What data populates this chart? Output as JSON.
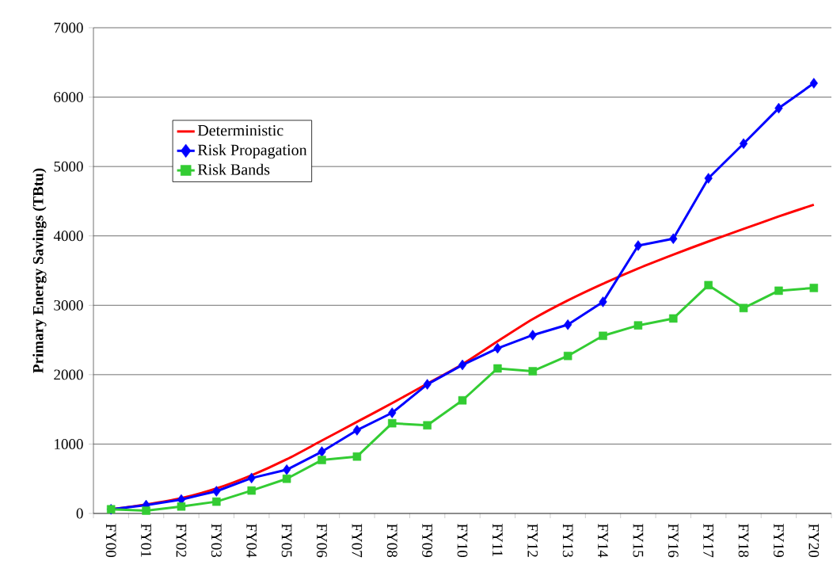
{
  "chart_data": {
    "type": "line",
    "ylabel": "Primary Energy Savings (TBtu)",
    "categories": [
      "FY00",
      "FY01",
      "FY02",
      "FY03",
      "FY04",
      "FY05",
      "FY06",
      "FY07",
      "FY08",
      "FY09",
      "FY10",
      "FY11",
      "FY12",
      "FY13",
      "FY14",
      "FY15",
      "FY16",
      "FY17",
      "FY18",
      "FY19",
      "FY20"
    ],
    "series": [
      {
        "name": "Deterministic",
        "color": "#ff0000",
        "marker": "none",
        "values": [
          60,
          130,
          220,
          360,
          550,
          780,
          1050,
          1320,
          1590,
          1870,
          2150,
          2480,
          2800,
          3070,
          3310,
          3530,
          3730,
          3920,
          4100,
          4280,
          4450
        ]
      },
      {
        "name": "Risk Propagation",
        "color": "#0000ff",
        "marker": "diamond",
        "values": [
          60,
          120,
          200,
          320,
          510,
          630,
          890,
          1200,
          1450,
          1860,
          2140,
          2380,
          2570,
          2720,
          3050,
          3860,
          3960,
          4830,
          5330,
          5840,
          6200
        ]
      },
      {
        "name": "Risk Bands",
        "color": "#33cc33",
        "marker": "square",
        "values": [
          60,
          40,
          100,
          170,
          330,
          500,
          770,
          820,
          1300,
          1270,
          1630,
          2090,
          2050,
          2270,
          2560,
          2710,
          2810,
          3290,
          2960,
          3210,
          3250
        ]
      }
    ],
    "ylim": [
      0,
      7000
    ],
    "yticks": [
      0,
      1000,
      2000,
      3000,
      4000,
      5000,
      6000,
      7000
    ],
    "grid": "y",
    "legend": "top left"
  }
}
